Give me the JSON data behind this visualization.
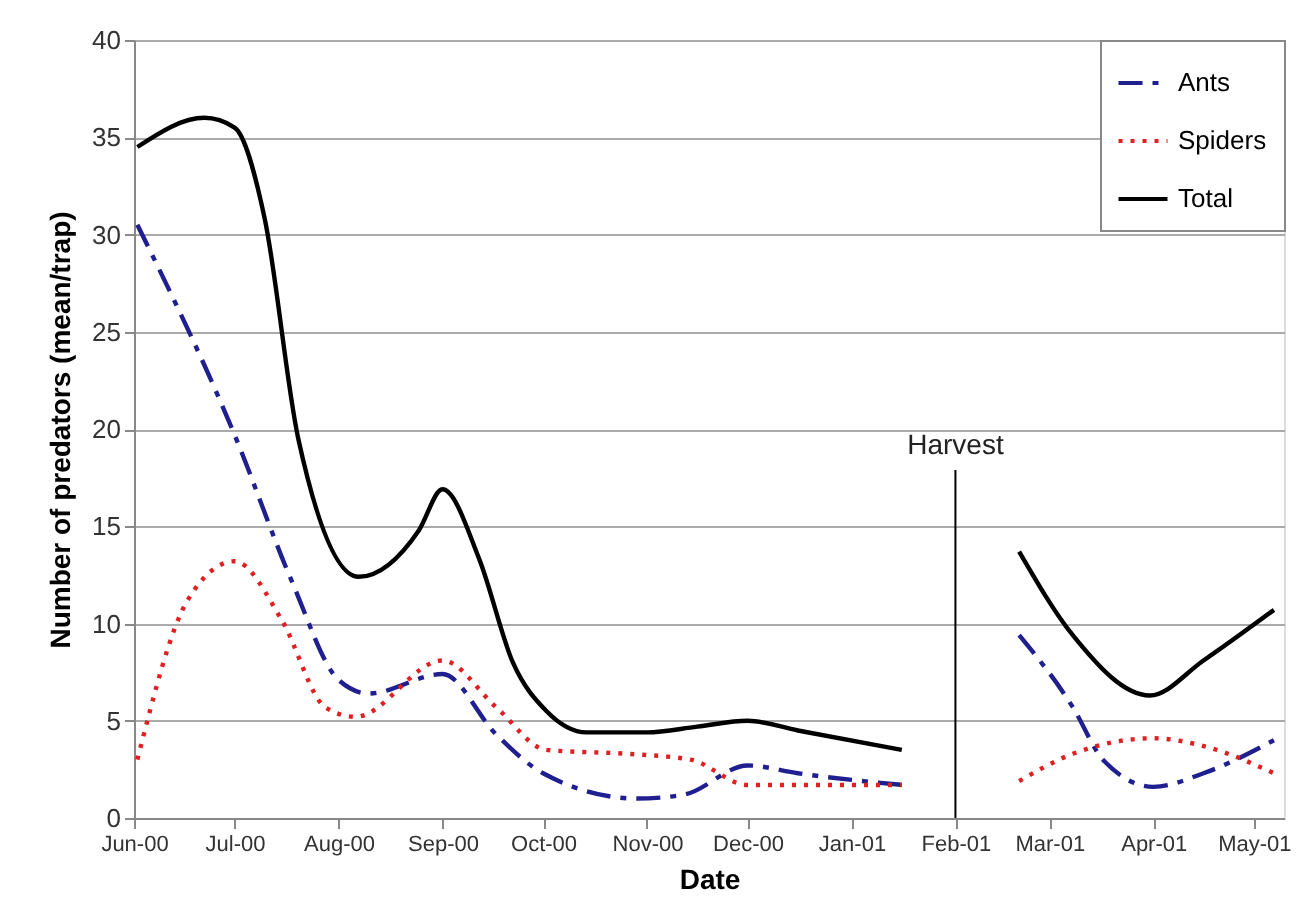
{
  "chart_data": {
    "type": "line",
    "xlabel": "Date",
    "ylabel": "Number of predators (mean/trap)",
    "xlim": [
      "2000-06-01",
      "2001-05-10"
    ],
    "ylim": [
      0,
      40
    ],
    "yticks": [
      0,
      5,
      10,
      15,
      20,
      25,
      30,
      35,
      40
    ],
    "xticks": [
      {
        "value": "2000-06-01",
        "label": "Jun-00"
      },
      {
        "value": "2000-07-01",
        "label": "Jul-00"
      },
      {
        "value": "2000-08-01",
        "label": "Aug-00"
      },
      {
        "value": "2000-09-01",
        "label": "Sep-00"
      },
      {
        "value": "2000-10-01",
        "label": "Oct-00"
      },
      {
        "value": "2000-11-01",
        "label": "Nov-00"
      },
      {
        "value": "2000-12-01",
        "label": "Dec-00"
      },
      {
        "value": "2001-01-01",
        "label": "Jan-01"
      },
      {
        "value": "2001-02-01",
        "label": "Feb-01"
      },
      {
        "value": "2001-03-01",
        "label": "Mar-01"
      },
      {
        "value": "2001-04-01",
        "label": "Apr-01"
      },
      {
        "value": "2001-05-01",
        "label": "May-01"
      }
    ],
    "grid": "y",
    "legend": "top right",
    "ref_lines": [
      {
        "axis": "x",
        "value": "2001-02-01",
        "label": "Harvest"
      }
    ],
    "series": [
      {
        "name": "Ants",
        "color": "#1f1f8f",
        "line_style": "dashed",
        "x": [
          "2000-06-02",
          "2000-07-01",
          "2000-07-18",
          "2000-08-01",
          "2000-08-10",
          "2000-09-01",
          "2000-09-17",
          "2000-10-01",
          "2000-10-29",
          "2000-11-12",
          "2000-12-01",
          "2000-12-16",
          "2001-01-16",
          "2001-02-01",
          "2001-02-20",
          "2001-03-08",
          "2001-03-17",
          "2001-04-01",
          "2001-04-16",
          "2001-05-07"
        ],
        "values": [
          30.5,
          19.7,
          12.2,
          7.1,
          6.4,
          7.4,
          4.3,
          2.3,
          1.0,
          1.2,
          2.7,
          2.3,
          1.7,
          null,
          9.4,
          5.7,
          3.0,
          1.6,
          2.3,
          4.0
        ]
      },
      {
        "name": "Spiders",
        "color": "#e02020",
        "line_style": "dotted",
        "x": [
          "2000-06-02",
          "2000-06-17",
          "2000-07-01",
          "2000-07-15",
          "2000-07-28",
          "2000-08-06",
          "2000-09-01",
          "2000-09-17",
          "2000-10-02",
          "2000-10-26",
          "2000-11-14",
          "2000-12-01",
          "2000-12-26",
          "2001-01-16",
          "2001-02-01",
          "2001-02-20",
          "2001-03-08",
          "2001-04-01",
          "2001-04-16",
          "2001-05-07"
        ],
        "values": [
          3.0,
          11.2,
          13.2,
          10.2,
          5.7,
          5.2,
          8.1,
          5.7,
          3.5,
          3.3,
          3.0,
          1.7,
          1.7,
          1.7,
          null,
          1.9,
          3.3,
          4.1,
          3.7,
          2.3
        ]
      },
      {
        "name": "Total",
        "color": "#000000",
        "line_style": "solid",
        "x": [
          "2000-06-02",
          "2000-06-22",
          "2000-07-01",
          "2000-07-10",
          "2000-07-20",
          "2000-08-07",
          "2000-08-25",
          "2000-09-01",
          "2000-09-12",
          "2000-09-22",
          "2000-10-02",
          "2000-10-14",
          "2000-11-01",
          "2000-11-16",
          "2000-12-01",
          "2000-12-16",
          "2001-01-16",
          "2001-02-01",
          "2001-02-20",
          "2001-03-08",
          "2001-03-31",
          "2001-04-16",
          "2001-05-07"
        ],
        "values": [
          34.5,
          36.0,
          35.5,
          30.8,
          19.5,
          12.4,
          14.8,
          16.9,
          13.3,
          8.0,
          5.5,
          4.4,
          4.4,
          4.7,
          5.0,
          4.5,
          3.5,
          null,
          13.7,
          9.4,
          6.3,
          8.1,
          10.7
        ]
      }
    ]
  }
}
